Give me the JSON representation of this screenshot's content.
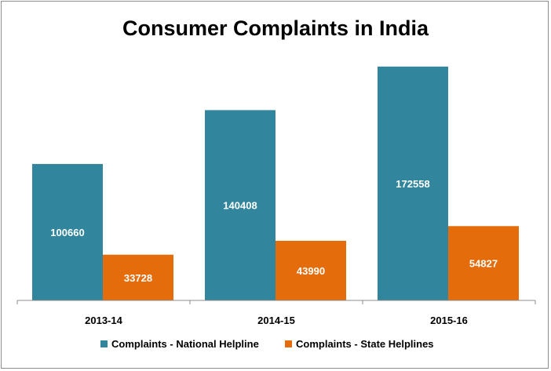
{
  "chart_data": {
    "type": "bar",
    "title": "Consumer Complaints in India",
    "categories": [
      "2013-14",
      "2014-15",
      "2015-16"
    ],
    "series": [
      {
        "name": "Complaints - National Helpline",
        "values": [
          100660,
          140408,
          172558
        ],
        "color": "#31859C"
      },
      {
        "name": "Complaints - State Helplines",
        "values": [
          33728,
          43990,
          54827
        ],
        "color": "#E46C0A"
      }
    ],
    "xlabel": "",
    "ylabel": "",
    "ylim": [
      0,
      180000
    ],
    "grid": false,
    "legend_position": "bottom",
    "data_labels": true
  }
}
